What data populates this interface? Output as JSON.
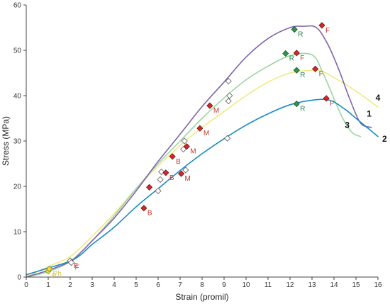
{
  "chart_data": {
    "type": "line",
    "title": "",
    "xlabel": "Strain  (promil)",
    "ylabel": "Stress  (MPa)",
    "xlim": [
      0,
      16
    ],
    "ylim": [
      0,
      60
    ],
    "xticks": [
      "0",
      "1",
      "2",
      "3",
      "4",
      "5",
      "6",
      "7",
      "8",
      "9",
      "10",
      "11",
      "12",
      "13",
      "14",
      "15",
      "16"
    ],
    "yticks": [
      "0",
      "10",
      "20",
      "30",
      "40",
      "50",
      "60"
    ],
    "grid": false,
    "colors": {
      "series1": "#8064a8",
      "series2": "#1a8ac4",
      "series3": "#9ed4a6",
      "series4": "#f0ea82",
      "marker_red": "#d62828",
      "marker_green": "#2e9a4c",
      "marker_open": "#ffffff",
      "marker_yellow": "#f3e03a",
      "label_red": "#c0392b",
      "label_green": "#27864a",
      "label_yellow": "#d8c94a"
    },
    "series": [
      {
        "name": "1",
        "color": "#8064a8",
        "x": [
          0,
          1,
          2,
          2.5,
          3,
          4,
          5,
          6,
          7,
          8,
          9,
          10,
          11,
          12,
          12.6,
          13.2,
          13.7,
          14.2,
          14.7,
          15.2,
          15.7
        ],
        "y": [
          0,
          1.5,
          3.4,
          5.5,
          8,
          13,
          19,
          25.5,
          31.5,
          37.6,
          43,
          48.5,
          52.6,
          55,
          55.3,
          55,
          51.5,
          46,
          39.5,
          34,
          33
        ]
      },
      {
        "name": "2",
        "color": "#1a8ac4",
        "x": [
          0,
          1,
          2,
          2.5,
          3,
          4,
          5,
          6,
          7,
          8,
          9,
          10,
          11,
          12,
          13,
          13.8,
          14.5,
          15,
          15.5,
          16
        ],
        "y": [
          0.5,
          2,
          3.5,
          5,
          7.2,
          11,
          15.5,
          19.5,
          23.5,
          27.2,
          30.5,
          33.5,
          36,
          38,
          39,
          39,
          37,
          35,
          33,
          31
        ]
      },
      {
        "name": "3",
        "color": "#9ed4a6",
        "x": [
          0,
          1,
          2,
          3,
          4,
          5,
          6,
          7,
          8,
          9,
          10,
          11,
          12,
          13,
          13.5,
          14.3,
          14.8,
          15.2
        ],
        "y": [
          0,
          1.2,
          3.5,
          8,
          13.5,
          19.5,
          25,
          30,
          35,
          39.5,
          43.5,
          46.5,
          48.8,
          49,
          45,
          36,
          32,
          31
        ]
      },
      {
        "name": "4",
        "color": "#f0ea82",
        "x": [
          0,
          1,
          2,
          3,
          4,
          5,
          6,
          7,
          8,
          9,
          10,
          11,
          12,
          13,
          13.4,
          14,
          15,
          16
        ],
        "y": [
          0,
          2.3,
          4.5,
          9,
          14,
          19.5,
          24.5,
          29,
          33,
          36.5,
          40,
          43,
          45,
          45.6,
          45.5,
          44,
          41,
          37.5
        ]
      }
    ],
    "series_label_positions": [
      {
        "text": "1",
        "x": 15.6,
        "y": 36
      },
      {
        "text": "2",
        "x": 16.3,
        "y": 30.5
      },
      {
        "text": "3",
        "x": 14.6,
        "y": 33.5
      },
      {
        "text": "4",
        "x": 16.0,
        "y": 39.5
      }
    ],
    "markers": [
      {
        "x": 1.0,
        "y": 1.3,
        "style": "yellow",
        "label": "P"
      },
      {
        "x": 1.05,
        "y": 1.8,
        "style": "yellow",
        "label": "Ph"
      },
      {
        "x": 2.0,
        "y": 3.6,
        "style": "open",
        "label": "F"
      },
      {
        "x": 2.05,
        "y": 3.2,
        "style": "open",
        "label": "F"
      },
      {
        "x": 5.35,
        "y": 15.2,
        "style": "red",
        "label": "B"
      },
      {
        "x": 5.6,
        "y": 19.8,
        "style": "red",
        "label": ""
      },
      {
        "x": 6.0,
        "y": 19.0,
        "style": "open",
        "label": ""
      },
      {
        "x": 6.1,
        "y": 21.5,
        "style": "open",
        "label": ""
      },
      {
        "x": 6.15,
        "y": 23.2,
        "style": "open",
        "label": ""
      },
      {
        "x": 6.35,
        "y": 23.0,
        "style": "red",
        "label": "B"
      },
      {
        "x": 6.65,
        "y": 26.6,
        "style": "red",
        "label": "B"
      },
      {
        "x": 7.05,
        "y": 22.8,
        "style": "red",
        "label": "M"
      },
      {
        "x": 7.15,
        "y": 28.2,
        "style": "open",
        "label": ""
      },
      {
        "x": 7.2,
        "y": 30.0,
        "style": "open",
        "label": ""
      },
      {
        "x": 7.25,
        "y": 23.6,
        "style": "open",
        "label": ""
      },
      {
        "x": 7.3,
        "y": 28.8,
        "style": "red",
        "label": "M"
      },
      {
        "x": 7.9,
        "y": 32.8,
        "style": "red",
        "label": "M"
      },
      {
        "x": 8.35,
        "y": 37.8,
        "style": "red",
        "label": "M"
      },
      {
        "x": 9.15,
        "y": 30.6,
        "style": "open",
        "label": ""
      },
      {
        "x": 9.2,
        "y": 38.8,
        "style": "open",
        "label": ""
      },
      {
        "x": 9.25,
        "y": 40.0,
        "style": "open",
        "label": ""
      },
      {
        "x": 9.2,
        "y": 43.2,
        "style": "open",
        "label": ""
      },
      {
        "x": 11.8,
        "y": 49.3,
        "style": "green",
        "label": "R"
      },
      {
        "x": 12.2,
        "y": 54.6,
        "style": "green",
        "label": "R"
      },
      {
        "x": 12.3,
        "y": 49.4,
        "style": "red",
        "label": "F"
      },
      {
        "x": 12.3,
        "y": 45.6,
        "style": "green",
        "label": "R"
      },
      {
        "x": 12.3,
        "y": 38.2,
        "style": "green",
        "label": "R"
      },
      {
        "x": 13.15,
        "y": 45.9,
        "style": "red",
        "label": "F"
      },
      {
        "x": 13.45,
        "y": 55.5,
        "style": "red",
        "label": "F"
      },
      {
        "x": 13.65,
        "y": 39.4,
        "style": "red",
        "label": "F"
      }
    ]
  }
}
